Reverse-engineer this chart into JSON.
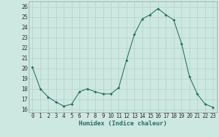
{
  "x": [
    0,
    1,
    2,
    3,
    4,
    5,
    6,
    7,
    8,
    9,
    10,
    11,
    12,
    13,
    14,
    15,
    16,
    17,
    18,
    19,
    20,
    21,
    22,
    23
  ],
  "y": [
    20.1,
    18.0,
    17.2,
    16.7,
    16.3,
    16.5,
    17.7,
    18.0,
    17.7,
    17.5,
    17.5,
    18.1,
    20.8,
    23.3,
    24.8,
    25.2,
    25.8,
    25.2,
    24.7,
    22.4,
    19.2,
    17.5,
    16.5,
    16.2
  ],
  "line_color": "#2a6b5e",
  "marker_color": "#2a6b5e",
  "bg_color": "#cce8e0",
  "grid_color": "#b0d0ca",
  "ylabel_ticks": [
    16,
    17,
    18,
    19,
    20,
    21,
    22,
    23,
    24,
    25,
    26
  ],
  "xlabel": "Humidex (Indice chaleur)",
  "ylim": [
    15.7,
    26.5
  ],
  "xlim": [
    -0.5,
    23.5
  ],
  "tick_fontsize": 5.5,
  "label_fontsize": 6.5
}
